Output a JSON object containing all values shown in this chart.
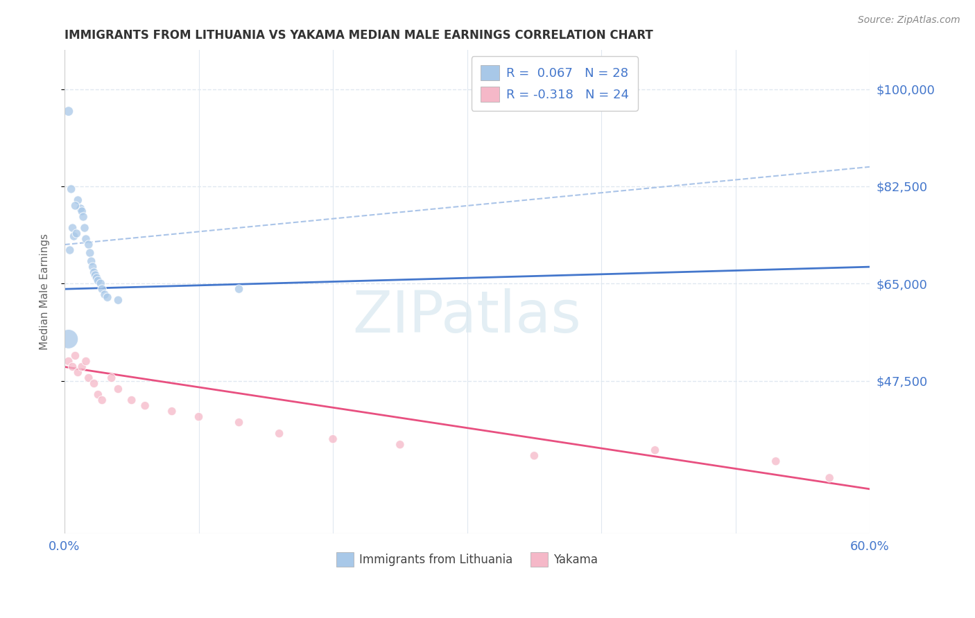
{
  "title": "IMMIGRANTS FROM LITHUANIA VS YAKAMA MEDIAN MALE EARNINGS CORRELATION CHART",
  "source": "Source: ZipAtlas.com",
  "ylabel": "Median Male Earnings",
  "xlim": [
    0.0,
    0.6
  ],
  "ylim": [
    20000,
    107000
  ],
  "yticks": [
    47500,
    65000,
    82500,
    100000
  ],
  "ytick_labels": [
    "$47,500",
    "$65,000",
    "$82,500",
    "$100,000"
  ],
  "xticks": [
    0.0,
    0.6
  ],
  "xtick_labels": [
    "0.0%",
    "60.0%"
  ],
  "legend_r1": "R =  0.067   N = 28",
  "legend_r2": "R = -0.318   N = 24",
  "blue_color": "#a8c8e8",
  "pink_color": "#f5b8c8",
  "blue_line_color": "#4477cc",
  "pink_line_color": "#e85080",
  "dash_line_color": "#aac4e8",
  "watermark": "ZIPatlas",
  "blue_scatter_x": [
    0.003,
    0.01,
    0.012,
    0.013,
    0.014,
    0.015,
    0.016,
    0.018,
    0.019,
    0.02,
    0.021,
    0.022,
    0.023,
    0.024,
    0.025,
    0.027,
    0.028,
    0.03,
    0.032,
    0.04,
    0.005,
    0.008,
    0.006,
    0.007,
    0.13,
    0.004,
    0.009,
    0.003
  ],
  "blue_scatter_y": [
    96000,
    80000,
    78500,
    78000,
    77000,
    75000,
    73000,
    72000,
    70500,
    69000,
    68000,
    67000,
    66500,
    66000,
    65500,
    65000,
    64000,
    63000,
    62500,
    62000,
    82000,
    79000,
    75000,
    73500,
    64000,
    71000,
    74000,
    55000
  ],
  "pink_scatter_x": [
    0.003,
    0.006,
    0.008,
    0.01,
    0.013,
    0.016,
    0.018,
    0.022,
    0.025,
    0.028,
    0.035,
    0.04,
    0.05,
    0.06,
    0.08,
    0.1,
    0.13,
    0.16,
    0.2,
    0.25,
    0.35,
    0.44,
    0.53,
    0.57
  ],
  "pink_scatter_y": [
    51000,
    50000,
    52000,
    49000,
    50000,
    51000,
    48000,
    47000,
    45000,
    44000,
    48000,
    46000,
    44000,
    43000,
    42000,
    41000,
    40000,
    38000,
    37000,
    36000,
    34000,
    35000,
    33000,
    30000
  ],
  "blue_sizes": [
    100,
    80,
    80,
    80,
    80,
    80,
    80,
    80,
    80,
    80,
    80,
    80,
    80,
    80,
    80,
    80,
    80,
    80,
    80,
    80,
    80,
    80,
    80,
    80,
    80,
    80,
    80,
    400
  ],
  "pink_sizes": [
    80,
    80,
    80,
    80,
    80,
    80,
    80,
    80,
    80,
    80,
    80,
    80,
    80,
    80,
    80,
    80,
    80,
    80,
    80,
    80,
    80,
    80,
    80,
    80
  ],
  "blue_trend_x": [
    0.0,
    0.6
  ],
  "blue_trend_y": [
    64000,
    68000
  ],
  "pink_trend_x": [
    0.0,
    0.6
  ],
  "pink_trend_y": [
    50000,
    28000
  ],
  "dash_trend_x": [
    0.0,
    0.6
  ],
  "dash_trend_y": [
    72000,
    86000
  ],
  "background_color": "#ffffff",
  "grid_color": "#e0e8f0"
}
